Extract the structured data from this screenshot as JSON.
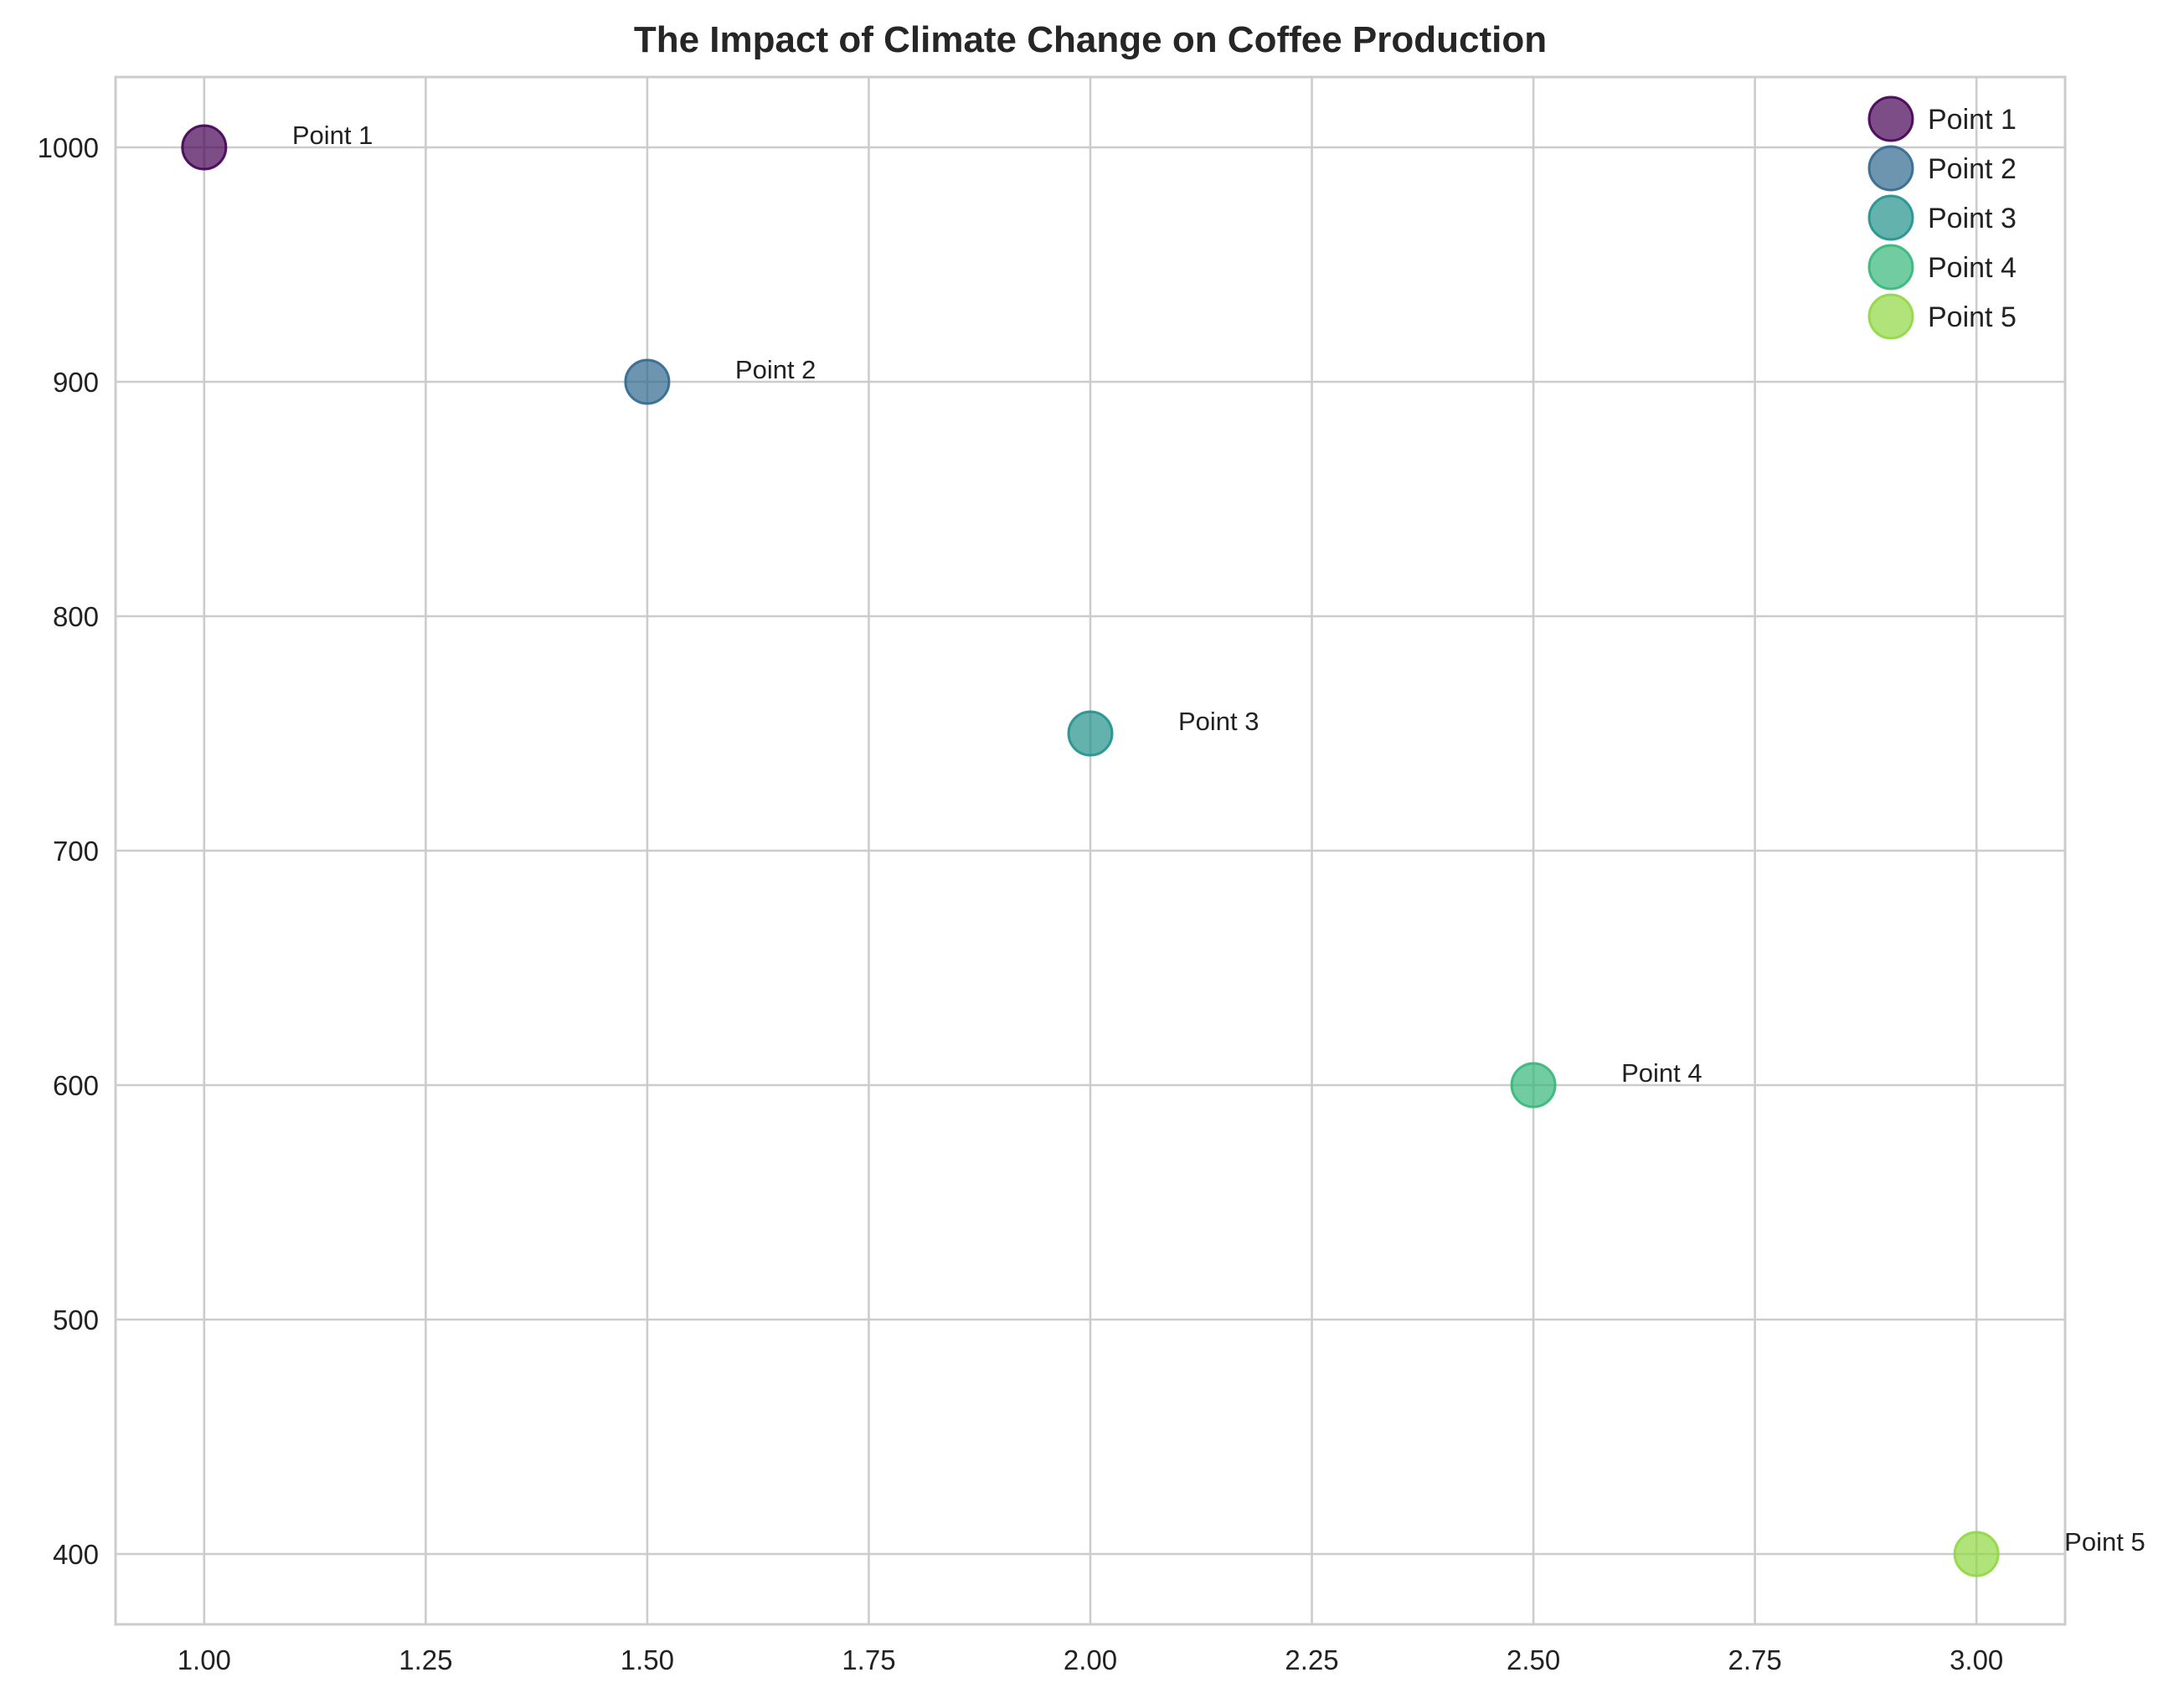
{
  "chart_data": {
    "type": "scatter",
    "title": "The Impact of Climate Change on Coffee Production",
    "xlabel": "",
    "ylabel": "",
    "xlim": [
      0.9,
      3.1
    ],
    "ylim": [
      370,
      1030
    ],
    "x_ticks": [
      1.0,
      1.25,
      1.5,
      1.75,
      2.0,
      2.25,
      2.5,
      2.75,
      3.0
    ],
    "x_tick_labels": [
      "1.00",
      "1.25",
      "1.50",
      "1.75",
      "2.00",
      "2.25",
      "2.50",
      "2.75",
      "3.00"
    ],
    "y_ticks": [
      400,
      500,
      600,
      700,
      800,
      900,
      1000
    ],
    "y_tick_labels": [
      "400",
      "500",
      "600",
      "700",
      "800",
      "900",
      "1000"
    ],
    "grid": true,
    "legend_position": "top-right",
    "points": [
      {
        "name": "Point 1",
        "label": "Point 1",
        "x": 1.0,
        "y": 1000,
        "color": "#440154"
      },
      {
        "name": "Point 2",
        "label": "Point 2",
        "x": 1.5,
        "y": 900,
        "color": "#31688e"
      },
      {
        "name": "Point 3",
        "label": "Point 3",
        "x": 2.0,
        "y": 750,
        "color": "#21918c"
      },
      {
        "name": "Point 4",
        "label": "Point 4",
        "x": 2.5,
        "y": 600,
        "color": "#35b779"
      },
      {
        "name": "Point 5",
        "label": "Point 5",
        "x": 3.0,
        "y": 400,
        "color": "#90d743"
      }
    ],
    "marker_opacity": 0.7
  }
}
